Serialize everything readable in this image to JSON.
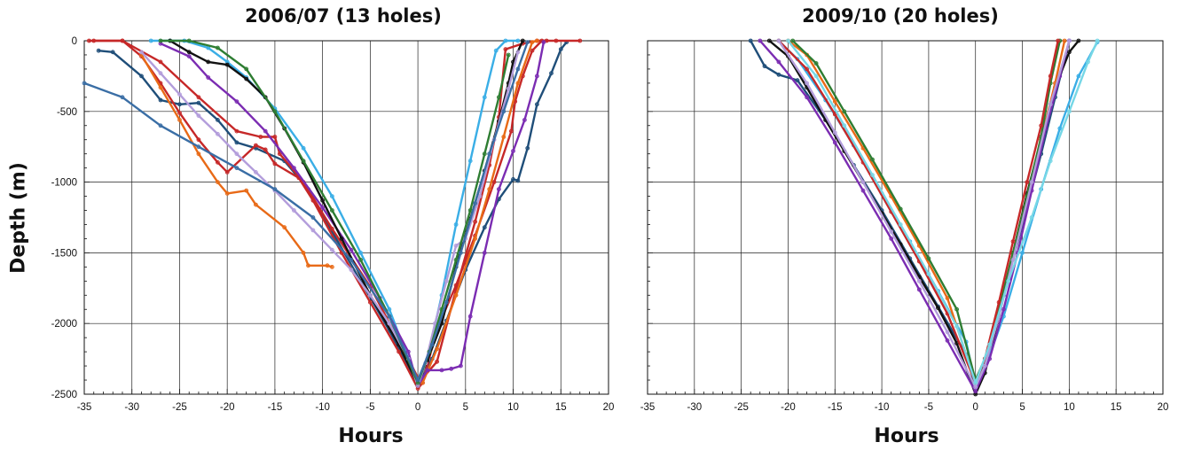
{
  "chart_data": [
    {
      "type": "line",
      "title": "2006/07 (13 holes)",
      "xlabel": "Hours",
      "ylabel": "Depth (m)",
      "xlim": [
        -35,
        20
      ],
      "ylim": [
        -2500,
        0
      ],
      "xticks": [
        -35,
        -30,
        -25,
        -20,
        -15,
        -10,
        -5,
        0,
        5,
        10,
        15,
        20
      ],
      "yticks": [
        0,
        -500,
        -1000,
        -1500,
        -2000,
        -2500
      ],
      "grid": true,
      "series": [
        {
          "color": "#1f4e79",
          "x": [
            -33.5,
            -32,
            -29,
            -27,
            -25,
            -23,
            -21,
            -19,
            -17,
            -14,
            -11.5,
            -9,
            -6,
            -3,
            -1,
            0,
            1.5,
            3,
            5,
            7,
            8.5,
            10,
            10.5,
            11.5,
            12.5,
            14,
            15,
            15.6
          ],
          "y": [
            -70,
            -80,
            -250,
            -420,
            -450,
            -440,
            -560,
            -720,
            -760,
            -850,
            -1050,
            -1350,
            -1700,
            -2050,
            -2300,
            -2440,
            -2250,
            -1980,
            -1620,
            -1320,
            -1120,
            -980,
            -990,
            -760,
            -450,
            -230,
            -60,
            -10
          ]
        },
        {
          "color": "#c62828",
          "x": [
            -34,
            -31,
            -29,
            -27,
            -25,
            -23,
            -21,
            -20,
            -17,
            -16,
            -15,
            -12.5,
            -11,
            -8,
            -5,
            -2,
            0,
            0.5,
            2,
            4,
            6,
            8,
            9.8,
            10.2,
            11,
            12,
            13,
            14.5,
            17
          ],
          "y": [
            0,
            0,
            -110,
            -300,
            -510,
            -700,
            -860,
            -930,
            -740,
            -770,
            -870,
            -970,
            -1130,
            -1500,
            -1850,
            -2200,
            -2460,
            -2420,
            -2040,
            -1730,
            -1380,
            -1000,
            -640,
            -430,
            -250,
            -70,
            0,
            0,
            0
          ]
        },
        {
          "color": "#c62828",
          "x": [
            -34.5,
            -31,
            -27,
            -23,
            -19,
            -16.5,
            -15,
            -14.5,
            -12,
            -9,
            -5,
            -1,
            0.2,
            2,
            4,
            6,
            7.5,
            8.5,
            9.2,
            11,
            12.5,
            13.5
          ],
          "y": [
            0,
            0,
            -150,
            -400,
            -640,
            -680,
            -680,
            -800,
            -1000,
            -1330,
            -1740,
            -2250,
            -2410,
            -2270,
            -1760,
            -1280,
            -880,
            -540,
            -60,
            -20,
            0,
            0
          ]
        },
        {
          "color": "#e86a17",
          "x": [
            -29,
            -27,
            -25,
            -23,
            -21,
            -20,
            -18,
            -17,
            -14,
            -12,
            -11.5,
            -9.5,
            -9
          ],
          "y": [
            -100,
            -330,
            -560,
            -800,
            -1000,
            -1080,
            -1060,
            -1160,
            -1320,
            -1500,
            -1590,
            -1590,
            -1600
          ]
        },
        {
          "color": "#e86a17",
          "x": [
            0.5,
            2,
            4,
            6,
            7.5,
            9,
            10.5,
            12,
            12.5
          ],
          "y": [
            -2420,
            -2180,
            -1800,
            -1400,
            -1050,
            -680,
            -300,
            -10,
            0
          ]
        },
        {
          "color": "#3aaee6",
          "x": [
            -28,
            -26,
            -24.5,
            -22,
            -20,
            -18,
            -15,
            -12,
            -9,
            -6,
            -3,
            -1,
            0,
            1,
            2.5,
            4,
            5.5,
            7,
            8.2,
            9.2,
            10.5
          ],
          "y": [
            0,
            0,
            0,
            -50,
            -150,
            -260,
            -480,
            -760,
            -1100,
            -1500,
            -1900,
            -2250,
            -2430,
            -2250,
            -1800,
            -1300,
            -850,
            -400,
            -70,
            0,
            0
          ]
        },
        {
          "color": "#7b2cb2",
          "x": [
            -27,
            -24,
            -22,
            -19,
            -16,
            -13,
            -10,
            -7,
            -4,
            -1,
            0,
            1,
            2.5,
            3.5,
            4.5,
            5.5,
            7,
            8.5,
            10,
            11.2,
            12.5,
            13.2
          ],
          "y": [
            -20,
            -110,
            -260,
            -430,
            -640,
            -900,
            -1180,
            -1480,
            -1820,
            -2200,
            -2440,
            -2330,
            -2330,
            -2320,
            -2300,
            -1950,
            -1500,
            -1050,
            -780,
            -560,
            -250,
            -10
          ]
        },
        {
          "color": "#111111",
          "x": [
            -26,
            -24,
            -22,
            -20,
            -18,
            -16,
            -14,
            -12,
            -10,
            -8,
            -5,
            -2,
            0,
            1,
            2.5,
            4,
            5.5,
            7,
            8.5,
            9.5,
            10,
            11
          ],
          "y": [
            0,
            -80,
            -150,
            -170,
            -270,
            -400,
            -620,
            -860,
            -1130,
            -1400,
            -1800,
            -2150,
            -2430,
            -2260,
            -2000,
            -1600,
            -1260,
            -920,
            -570,
            -300,
            -150,
            0
          ]
        },
        {
          "color": "#b39ddb",
          "x": [
            -29,
            -27,
            -25,
            -23,
            -21,
            -19,
            -17,
            -15,
            -13,
            -11,
            -9,
            -7,
            -5,
            -3,
            -1,
            0,
            0.8,
            1.8,
            3,
            4,
            5,
            6.5,
            8,
            9.5,
            10.5
          ],
          "y": [
            -80,
            -230,
            -380,
            -530,
            -660,
            -800,
            -930,
            -1060,
            -1200,
            -1340,
            -1480,
            -1620,
            -1800,
            -2000,
            -2250,
            -2440,
            -2280,
            -2000,
            -1700,
            -1450,
            -1400,
            -1100,
            -700,
            -340,
            -80
          ]
        },
        {
          "color": "#2e7d32",
          "x": [
            -27,
            -24,
            -21,
            -18,
            -15,
            -12,
            -9,
            -6,
            -3,
            0,
            1.2,
            2.5,
            4,
            5.5,
            7,
            8.5,
            9.5
          ],
          "y": [
            0,
            0,
            -50,
            -200,
            -500,
            -850,
            -1200,
            -1550,
            -1950,
            -2420,
            -2200,
            -1900,
            -1550,
            -1200,
            -800,
            -400,
            -100
          ]
        },
        {
          "color": "#3a6ea5",
          "x": [
            -35,
            -31,
            -27,
            -23,
            -19,
            -15,
            -11,
            -7,
            -3,
            0,
            1.5,
            3,
            4.5,
            6,
            7.5,
            9,
            10.5,
            11.5
          ],
          "y": [
            -300,
            -400,
            -600,
            -750,
            -900,
            -1050,
            -1250,
            -1550,
            -1950,
            -2400,
            -2150,
            -1850,
            -1500,
            -1150,
            -800,
            -500,
            -200,
            -10
          ]
        }
      ]
    },
    {
      "type": "line",
      "title": "2009/10 (20 holes)",
      "xlabel": "Hours",
      "ylabel": "",
      "xlim": [
        -35,
        20
      ],
      "ylim": [
        -2500,
        0
      ],
      "xticks": [
        -35,
        -30,
        -25,
        -20,
        -15,
        -10,
        -5,
        0,
        5,
        10,
        15,
        20
      ],
      "grid": true,
      "series": [
        {
          "color": "#1f4e79",
          "x": [
            -24,
            -22.5,
            -21,
            -19,
            -16,
            -13,
            -10,
            -7,
            -4,
            -1,
            0,
            1,
            3,
            5,
            7,
            8.5,
            10
          ],
          "y": [
            0,
            -180,
            -240,
            -280,
            -560,
            -880,
            -1200,
            -1540,
            -1880,
            -2220,
            -2450,
            -2280,
            -1800,
            -1300,
            -800,
            -400,
            0
          ]
        },
        {
          "color": "#111111",
          "x": [
            -22,
            -20,
            -18,
            -16,
            -14,
            -12,
            -10,
            -8,
            -6,
            -4,
            -2,
            0,
            1,
            2.5,
            4,
            5.5,
            7,
            8.5,
            10,
            11
          ],
          "y": [
            0,
            -110,
            -330,
            -560,
            -780,
            -1000,
            -1220,
            -1440,
            -1670,
            -1890,
            -2140,
            -2500,
            -2350,
            -1950,
            -1500,
            -1080,
            -700,
            -330,
            -80,
            0
          ]
        },
        {
          "color": "#3aaee6",
          "x": [
            -21,
            -19,
            -16,
            -13,
            -10,
            -7,
            -4,
            -1,
            0,
            1.2,
            3,
            5,
            7,
            9,
            11,
            13
          ],
          "y": [
            0,
            -130,
            -420,
            -740,
            -1080,
            -1420,
            -1770,
            -2130,
            -2430,
            -2280,
            -1950,
            -1500,
            -1050,
            -620,
            -250,
            -10
          ]
        },
        {
          "color": "#e86a17",
          "x": [
            -20,
            -18,
            -15,
            -12,
            -9,
            -6,
            -3,
            0,
            1,
            2.5,
            4,
            5.5,
            7,
            8.5,
            9.5
          ],
          "y": [
            0,
            -100,
            -430,
            -760,
            -1100,
            -1450,
            -1820,
            -2420,
            -2250,
            -1900,
            -1500,
            -1100,
            -700,
            -300,
            0
          ]
        },
        {
          "color": "#2e7d32",
          "x": [
            -19.5,
            -17,
            -14,
            -11,
            -8,
            -5,
            -2,
            0,
            1,
            2.5,
            4,
            5.5,
            7,
            8,
            9
          ],
          "y": [
            0,
            -160,
            -500,
            -840,
            -1190,
            -1540,
            -1900,
            -2400,
            -2250,
            -1900,
            -1500,
            -1100,
            -680,
            -300,
            0
          ]
        },
        {
          "color": "#c62828",
          "x": [
            -21,
            -18,
            -15,
            -12,
            -9,
            -6,
            -3,
            0,
            1,
            2.5,
            4,
            5.5,
            7,
            8,
            8.8
          ],
          "y": [
            0,
            -200,
            -520,
            -860,
            -1210,
            -1560,
            -1930,
            -2420,
            -2250,
            -1850,
            -1420,
            -1000,
            -600,
            -250,
            0
          ]
        },
        {
          "color": "#7b2cb2",
          "x": [
            -23,
            -21,
            -18,
            -15,
            -12,
            -9,
            -6,
            -3,
            0,
            1.5,
            3,
            4.5,
            6,
            7.5,
            9,
            10
          ],
          "y": [
            0,
            -150,
            -400,
            -720,
            -1060,
            -1400,
            -1760,
            -2120,
            -2480,
            -2250,
            -1900,
            -1500,
            -1060,
            -620,
            -250,
            0
          ]
        },
        {
          "color": "#b39ddb",
          "x": [
            -21,
            -18,
            -15,
            -12,
            -9,
            -6,
            -3,
            0,
            1,
            2.5,
            4,
            6,
            8,
            10
          ],
          "y": [
            0,
            -300,
            -650,
            -1000,
            -1350,
            -1700,
            -2060,
            -2450,
            -2300,
            -1950,
            -1550,
            -1000,
            -450,
            0
          ]
        },
        {
          "color": "#76d7e6",
          "x": [
            -20,
            -17,
            -14,
            -11,
            -8,
            -5,
            -2,
            0,
            1.5,
            3.5,
            6,
            8,
            10,
            12,
            13
          ],
          "y": [
            0,
            -250,
            -600,
            -950,
            -1300,
            -1650,
            -2020,
            -2420,
            -2150,
            -1700,
            -1250,
            -850,
            -500,
            -150,
            0
          ]
        }
      ]
    }
  ]
}
